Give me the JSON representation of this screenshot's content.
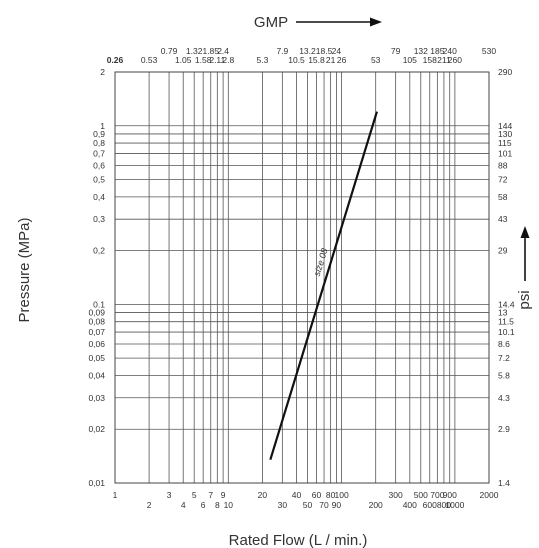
{
  "chart_data": {
    "type": "line",
    "title": "",
    "xlabel": "Rated Flow (L / min.)",
    "ylabel": "Pressure (MPa)",
    "x2label": "GMP",
    "y2label": "psi",
    "x_scale": "log",
    "y_scale": "log",
    "xlim": [
      1,
      2000
    ],
    "ylim": [
      0.01,
      2
    ],
    "grid": true,
    "legend": "none",
    "line_color": "#111111",
    "grid_color": "#555555",
    "x_ticks": [
      {
        "label": "1",
        "value": 1,
        "row": 1
      },
      {
        "label": "2",
        "value": 2,
        "row": 2
      },
      {
        "label": "3",
        "value": 3,
        "row": 1
      },
      {
        "label": "4",
        "value": 4,
        "row": 2
      },
      {
        "label": "5",
        "value": 5,
        "row": 1
      },
      {
        "label": "6",
        "value": 6,
        "row": 2
      },
      {
        "label": "7",
        "value": 7,
        "row": 1
      },
      {
        "label": "8",
        "value": 8,
        "row": 2
      },
      {
        "label": "9",
        "value": 9,
        "row": 1
      },
      {
        "label": "10",
        "value": 10,
        "row": 2
      },
      {
        "label": "20",
        "value": 20,
        "row": 1
      },
      {
        "label": "30",
        "value": 30,
        "row": 2
      },
      {
        "label": "40",
        "value": 40,
        "row": 1
      },
      {
        "label": "50",
        "value": 50,
        "row": 2
      },
      {
        "label": "60",
        "value": 60,
        "row": 1
      },
      {
        "label": "70",
        "value": 70,
        "row": 2
      },
      {
        "label": "80",
        "value": 80,
        "row": 1
      },
      {
        "label": "90",
        "value": 90,
        "row": 2
      },
      {
        "label": "100",
        "value": 100,
        "row": 1
      },
      {
        "label": "200",
        "value": 200,
        "row": 2
      },
      {
        "label": "300",
        "value": 300,
        "row": 1
      },
      {
        "label": "400",
        "value": 400,
        "row": 2
      },
      {
        "label": "500",
        "value": 500,
        "row": 1
      },
      {
        "label": "600",
        "value": 600,
        "row": 2
      },
      {
        "label": "700",
        "value": 700,
        "row": 1
      },
      {
        "label": "800",
        "value": 800,
        "row": 2
      },
      {
        "label": "900",
        "value": 900,
        "row": 1
      },
      {
        "label": "1000",
        "value": 1000,
        "row": 2
      },
      {
        "label": "2000",
        "value": 2000,
        "row": 1
      }
    ],
    "x_top_ticks": [
      {
        "label": "0.26",
        "value": 1,
        "row": 2,
        "bold": true
      },
      {
        "label": "0.53",
        "value": 2,
        "row": 2
      },
      {
        "label": "0.79",
        "value": 3,
        "row": 1
      },
      {
        "label": "1.05",
        "value": 4,
        "row": 2
      },
      {
        "label": "1.32",
        "value": 5,
        "row": 1
      },
      {
        "label": "1.58",
        "value": 6,
        "row": 2
      },
      {
        "label": "1.85",
        "value": 7,
        "row": 1
      },
      {
        "label": "2.11",
        "value": 8,
        "row": 2
      },
      {
        "label": "2.4",
        "value": 9,
        "row": 1
      },
      {
        "label": "2.8",
        "value": 10,
        "row": 2
      },
      {
        "label": "5.3",
        "value": 20,
        "row": 2
      },
      {
        "label": "7.9",
        "value": 30,
        "row": 1
      },
      {
        "label": "10.5",
        "value": 40,
        "row": 2
      },
      {
        "label": "13.2",
        "value": 50,
        "row": 1
      },
      {
        "label": "15.8",
        "value": 60,
        "row": 2
      },
      {
        "label": "18.5",
        "value": 70,
        "row": 1
      },
      {
        "label": "21",
        "value": 80,
        "row": 2
      },
      {
        "label": "24",
        "value": 90,
        "row": 1
      },
      {
        "label": "26",
        "value": 100,
        "row": 2
      },
      {
        "label": "53",
        "value": 200,
        "row": 2
      },
      {
        "label": "79",
        "value": 300,
        "row": 1
      },
      {
        "label": "105",
        "value": 400,
        "row": 2
      },
      {
        "label": "132",
        "value": 500,
        "row": 1
      },
      {
        "label": "158",
        "value": 600,
        "row": 2
      },
      {
        "label": "185",
        "value": 700,
        "row": 1
      },
      {
        "label": "211",
        "value": 800,
        "row": 2
      },
      {
        "label": "240",
        "value": 900,
        "row": 1
      },
      {
        "label": "260",
        "value": 1000,
        "row": 2
      },
      {
        "label": "530",
        "value": 2000,
        "row": 1
      }
    ],
    "y_ticks": [
      {
        "label": "2",
        "value": 2
      },
      {
        "label": "1",
        "value": 1
      },
      {
        "label": "0,9",
        "value": 0.9
      },
      {
        "label": "0,8",
        "value": 0.8
      },
      {
        "label": "0,7",
        "value": 0.7
      },
      {
        "label": "0,6",
        "value": 0.6
      },
      {
        "label": "0,5",
        "value": 0.5
      },
      {
        "label": "0,4",
        "value": 0.4
      },
      {
        "label": "0,3",
        "value": 0.3
      },
      {
        "label": "0,2",
        "value": 0.2
      },
      {
        "label": "0.1",
        "value": 0.1
      },
      {
        "label": "0,09",
        "value": 0.09
      },
      {
        "label": "0,08",
        "value": 0.08
      },
      {
        "label": "0,07",
        "value": 0.07
      },
      {
        "label": "0,06",
        "value": 0.06
      },
      {
        "label": "0,05",
        "value": 0.05
      },
      {
        "label": "0,04",
        "value": 0.04
      },
      {
        "label": "0,03",
        "value": 0.03
      },
      {
        "label": "0,02",
        "value": 0.02
      },
      {
        "label": "0,01",
        "value": 0.01
      }
    ],
    "y_right_ticks": [
      {
        "label": "290",
        "value": 2
      },
      {
        "label": "144",
        "value": 1
      },
      {
        "label": "130",
        "value": 0.9
      },
      {
        "label": "115",
        "value": 0.8
      },
      {
        "label": "101",
        "value": 0.7
      },
      {
        "label": "88",
        "value": 0.6
      },
      {
        "label": "72",
        "value": 0.5
      },
      {
        "label": "58",
        "value": 0.4
      },
      {
        "label": "43",
        "value": 0.3
      },
      {
        "label": "29",
        "value": 0.2
      },
      {
        "label": "14.4",
        "value": 0.1
      },
      {
        "label": "13",
        "value": 0.09
      },
      {
        "label": "11.5",
        "value": 0.08
      },
      {
        "label": "10.1",
        "value": 0.07
      },
      {
        "label": "8.6",
        "value": 0.06
      },
      {
        "label": "7.2",
        "value": 0.05
      },
      {
        "label": "5.8",
        "value": 0.04
      },
      {
        "label": "4.3",
        "value": 0.03
      },
      {
        "label": "2.9",
        "value": 0.02
      },
      {
        "label": "1.4",
        "value": 0.01
      }
    ],
    "series": [
      {
        "name": "size 08",
        "x": [
          23.5,
          205
        ],
        "y": [
          0.0135,
          1.2
        ]
      }
    ]
  }
}
